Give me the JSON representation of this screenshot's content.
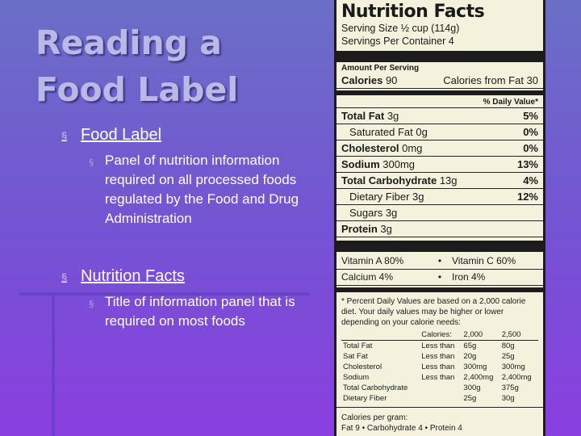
{
  "slide": {
    "title_line1": "Reading a",
    "title_line2": "Food Label",
    "bullets": [
      {
        "heading": "Food Label",
        "sub": "Panel of nutrition information required on all processed foods regulated by the Food and Drug Administration"
      },
      {
        "heading": "Nutrition Facts",
        "sub": "Title of information panel that is required on most foods"
      }
    ],
    "bullet_marker": "§"
  },
  "label": {
    "title": "Nutrition Facts",
    "serving_size": "Serving Size ½ cup (114g)",
    "servings_per_container": "Servings Per Container 4",
    "amount_per_serving": "Amount Per Serving",
    "calories_label": "Calories",
    "calories_value": "90",
    "calories_fat": "Calories from Fat 30",
    "dv_header": "% Daily Value*",
    "nutrients": [
      {
        "name": "Total Fat",
        "amount": "3g",
        "pct": "5%",
        "bold": true,
        "sub": false
      },
      {
        "name": "Saturated Fat",
        "amount": "0g",
        "pct": "0%",
        "bold": false,
        "sub": true
      },
      {
        "name": "Cholesterol",
        "amount": "0mg",
        "pct": "0%",
        "bold": true,
        "sub": false
      },
      {
        "name": "Sodium",
        "amount": "300mg",
        "pct": "13%",
        "bold": true,
        "sub": false
      },
      {
        "name": "Total Carbohydrate",
        "amount": "13g",
        "pct": "4%",
        "bold": true,
        "sub": false
      },
      {
        "name": "Dietary Fiber",
        "amount": "3g",
        "pct": "12%",
        "bold": false,
        "sub": true
      },
      {
        "name": "Sugars",
        "amount": "3g",
        "pct": "",
        "bold": false,
        "sub": true
      },
      {
        "name": "Protein",
        "amount": "3g",
        "pct": "",
        "bold": true,
        "sub": false
      }
    ],
    "vitamins": [
      {
        "left": "Vitamin A 80%",
        "right": "Vitamin C 60%"
      },
      {
        "left": "Calcium 4%",
        "right": "Iron 4%"
      }
    ],
    "vitamin_separator": "•",
    "footnote": "* Percent Daily Values are based on a 2,000 calorie diet. Your daily values may be higher or lower depending on your calorie needs:",
    "dv_table": {
      "header": [
        "",
        "Calories:",
        "2,000",
        "2,500"
      ],
      "rows": [
        [
          "Total Fat",
          "Less than",
          "65g",
          "80g"
        ],
        [
          "Sat Fat",
          "Less than",
          "20g",
          "25g"
        ],
        [
          "Cholesterol",
          "Less than",
          "300mg",
          "300mg"
        ],
        [
          "Sodium",
          "Less than",
          "2,400mg",
          "2,400mg"
        ],
        [
          "Total Carbohydrate",
          "",
          "300g",
          "375g"
        ],
        [
          "Dietary Fiber",
          "",
          "25g",
          "30g"
        ]
      ]
    },
    "calories_per_gram_label": "Calories per gram:",
    "calories_per_gram": "Fat 9 • Carbohydrate 4 • Protein 4"
  }
}
